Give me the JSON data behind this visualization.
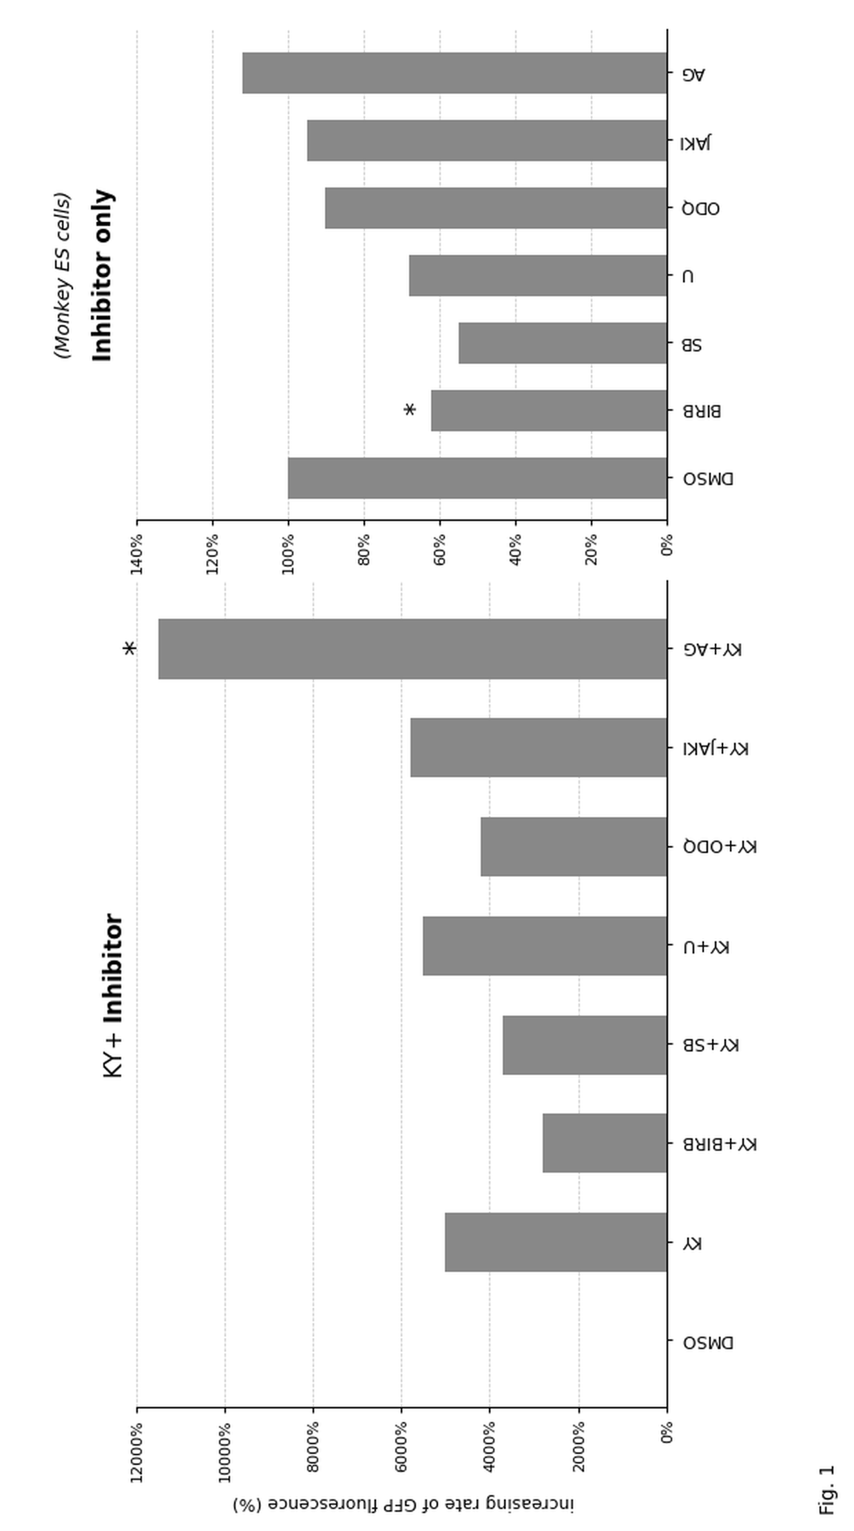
{
  "left_chart": {
    "title": "KY+ Inhibitor",
    "ylabel": "increasing rate of GFP fluorescence (%)",
    "categories": [
      "DMSO",
      "KY",
      "KY+BIRB",
      "KY+SB",
      "KY+U",
      "KY+ODQ",
      "KY+JAKI",
      "KY+AG"
    ],
    "values": [
      0,
      5000,
      2800,
      3700,
      5500,
      4200,
      5800,
      11500
    ],
    "ylim": [
      0,
      12000
    ],
    "yticks": [
      0,
      2000,
      4000,
      6000,
      8000,
      10000,
      12000
    ],
    "ytick_labels": [
      "0%",
      "2000%",
      "4000%",
      "6000%",
      "8000%",
      "10000%",
      "12000%"
    ],
    "star_bar_idx": 7,
    "bar_color": "#888888"
  },
  "right_chart": {
    "title": "Inhibitor only",
    "subtitle": "(Monkey ES cells)",
    "categories": [
      "DMSO",
      "BIRB",
      "SB",
      "U",
      "ODQ",
      "JAKI",
      "AG"
    ],
    "values": [
      100,
      62,
      55,
      68,
      90,
      95,
      112
    ],
    "ylim": [
      0,
      140
    ],
    "yticks": [
      0,
      20,
      40,
      60,
      80,
      100,
      120,
      140
    ],
    "ytick_labels": [
      "0%",
      "20%",
      "40%",
      "60%",
      "80%",
      "100%",
      "120%",
      "140%"
    ],
    "star_bar_idx": 1,
    "bar_color": "#888888"
  },
  "fig_label": "Fig. 1",
  "background_color": "#ffffff"
}
